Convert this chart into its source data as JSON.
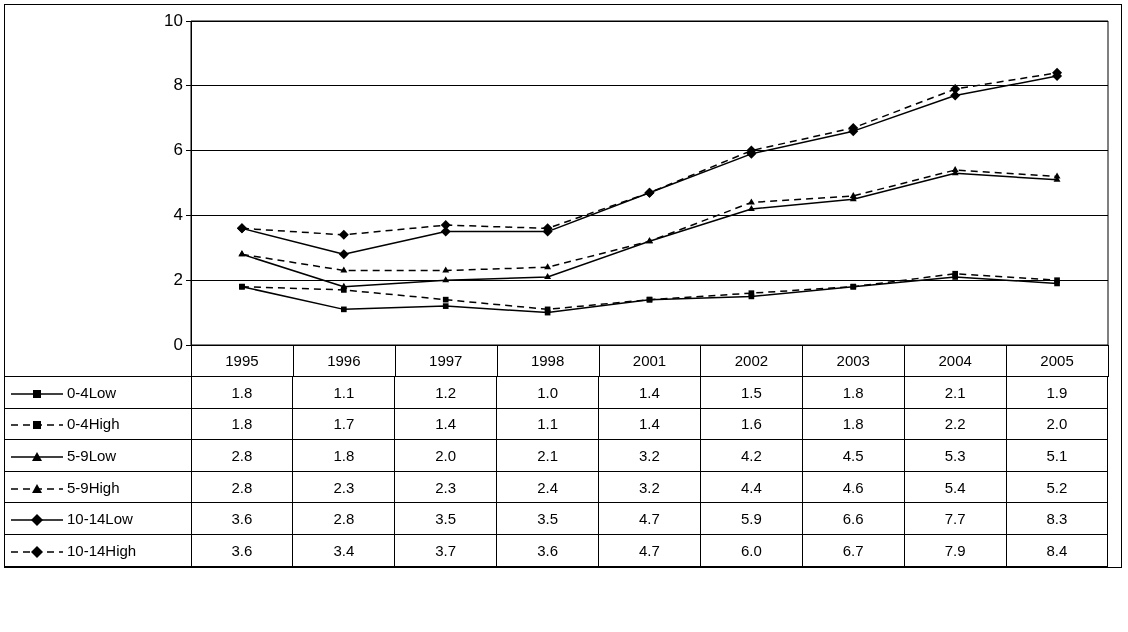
{
  "chart_data": {
    "type": "line",
    "categories": [
      "1995",
      "1996",
      "1997",
      "1998",
      "2001",
      "2002",
      "2003",
      "2004",
      "2005"
    ],
    "ylim": [
      0,
      10
    ],
    "yticks": [
      0,
      2,
      4,
      6,
      8,
      10
    ],
    "grid": "y",
    "legend": "bottom",
    "series": [
      {
        "name": "0-4Low",
        "color": "#000000",
        "marker": "square",
        "line_style": "solid",
        "values": [
          1.8,
          1.1,
          1.2,
          1.0,
          1.4,
          1.5,
          1.8,
          2.1,
          1.9
        ],
        "value_labels": [
          "1.8",
          "1.1",
          "1.2",
          "1.0",
          "1.4",
          "1.5",
          "1.8",
          "2.1",
          "1.9"
        ]
      },
      {
        "name": "0-4High",
        "color": "#000000",
        "marker": "square",
        "line_style": "dashed",
        "values": [
          1.8,
          1.7,
          1.4,
          1.1,
          1.4,
          1.6,
          1.8,
          2.2,
          2.0
        ],
        "value_labels": [
          "1.8",
          "1.7",
          "1.4",
          "1.1",
          "1.4",
          "1.6",
          "1.8",
          "2.2",
          "2.0"
        ]
      },
      {
        "name": "5-9Low",
        "color": "#000000",
        "marker": "triangle",
        "line_style": "solid",
        "values": [
          2.8,
          1.8,
          2.0,
          2.1,
          3.2,
          4.2,
          4.5,
          5.3,
          5.1
        ],
        "value_labels": [
          "2.8",
          "1.8",
          "2.0",
          "2.1",
          "3.2",
          "4.2",
          "4.5",
          "5.3",
          "5.1"
        ]
      },
      {
        "name": "5-9High",
        "color": "#000000",
        "marker": "triangle",
        "line_style": "dashed",
        "values": [
          2.8,
          2.3,
          2.3,
          2.4,
          3.2,
          4.4,
          4.6,
          5.4,
          5.2
        ],
        "value_labels": [
          "2.8",
          "2.3",
          "2.3",
          "2.4",
          "3.2",
          "4.4",
          "4.6",
          "5.4",
          "5.2"
        ]
      },
      {
        "name": "10-14Low",
        "color": "#000000",
        "marker": "diamond",
        "line_style": "solid",
        "values": [
          3.6,
          2.8,
          3.5,
          3.5,
          4.7,
          5.9,
          6.6,
          7.7,
          8.3
        ],
        "value_labels": [
          "3.6",
          "2.8",
          "3.5",
          "3.5",
          "4.7",
          "5.9",
          "6.6",
          "7.7",
          "8.3"
        ]
      },
      {
        "name": "10-14High",
        "color": "#000000",
        "marker": "diamond",
        "line_style": "dashed",
        "values": [
          3.6,
          3.4,
          3.7,
          3.6,
          4.7,
          6.0,
          6.7,
          7.9,
          8.4
        ],
        "value_labels": [
          "3.6",
          "3.4",
          "3.7",
          "3.6",
          "4.7",
          "6.0",
          "6.7",
          "7.9",
          "8.4"
        ]
      }
    ]
  }
}
